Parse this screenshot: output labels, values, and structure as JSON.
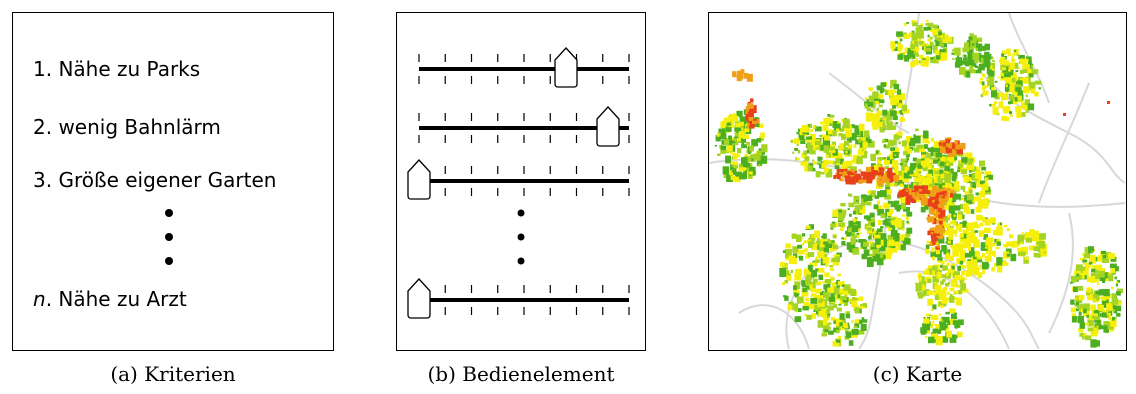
{
  "panel_a": {
    "criteria": [
      {
        "number": "1.",
        "label": "Nähe zu Parks"
      },
      {
        "number": "2.",
        "label": "wenig Bahnlärm"
      },
      {
        "number": "3.",
        "label": "Größe eigener Garten"
      }
    ],
    "last_criterion": {
      "number": "n",
      "suffix": ".",
      "label": "Nähe zu Arzt"
    }
  },
  "panel_b": {
    "slider_levels": [
      0.7,
      0.9,
      0.0,
      0.0
    ],
    "tick_count": 9
  },
  "captions": {
    "a": "(a) Kriterien",
    "b": "(b) Bedienelement",
    "c": "(c) Karte"
  },
  "map_colors": {
    "green": "#4caf1f",
    "light_green": "#a6d422",
    "yellow": "#f5ef0a",
    "orange": "#f0a016",
    "red": "#e8401a",
    "roads": "#d8d8d8"
  }
}
